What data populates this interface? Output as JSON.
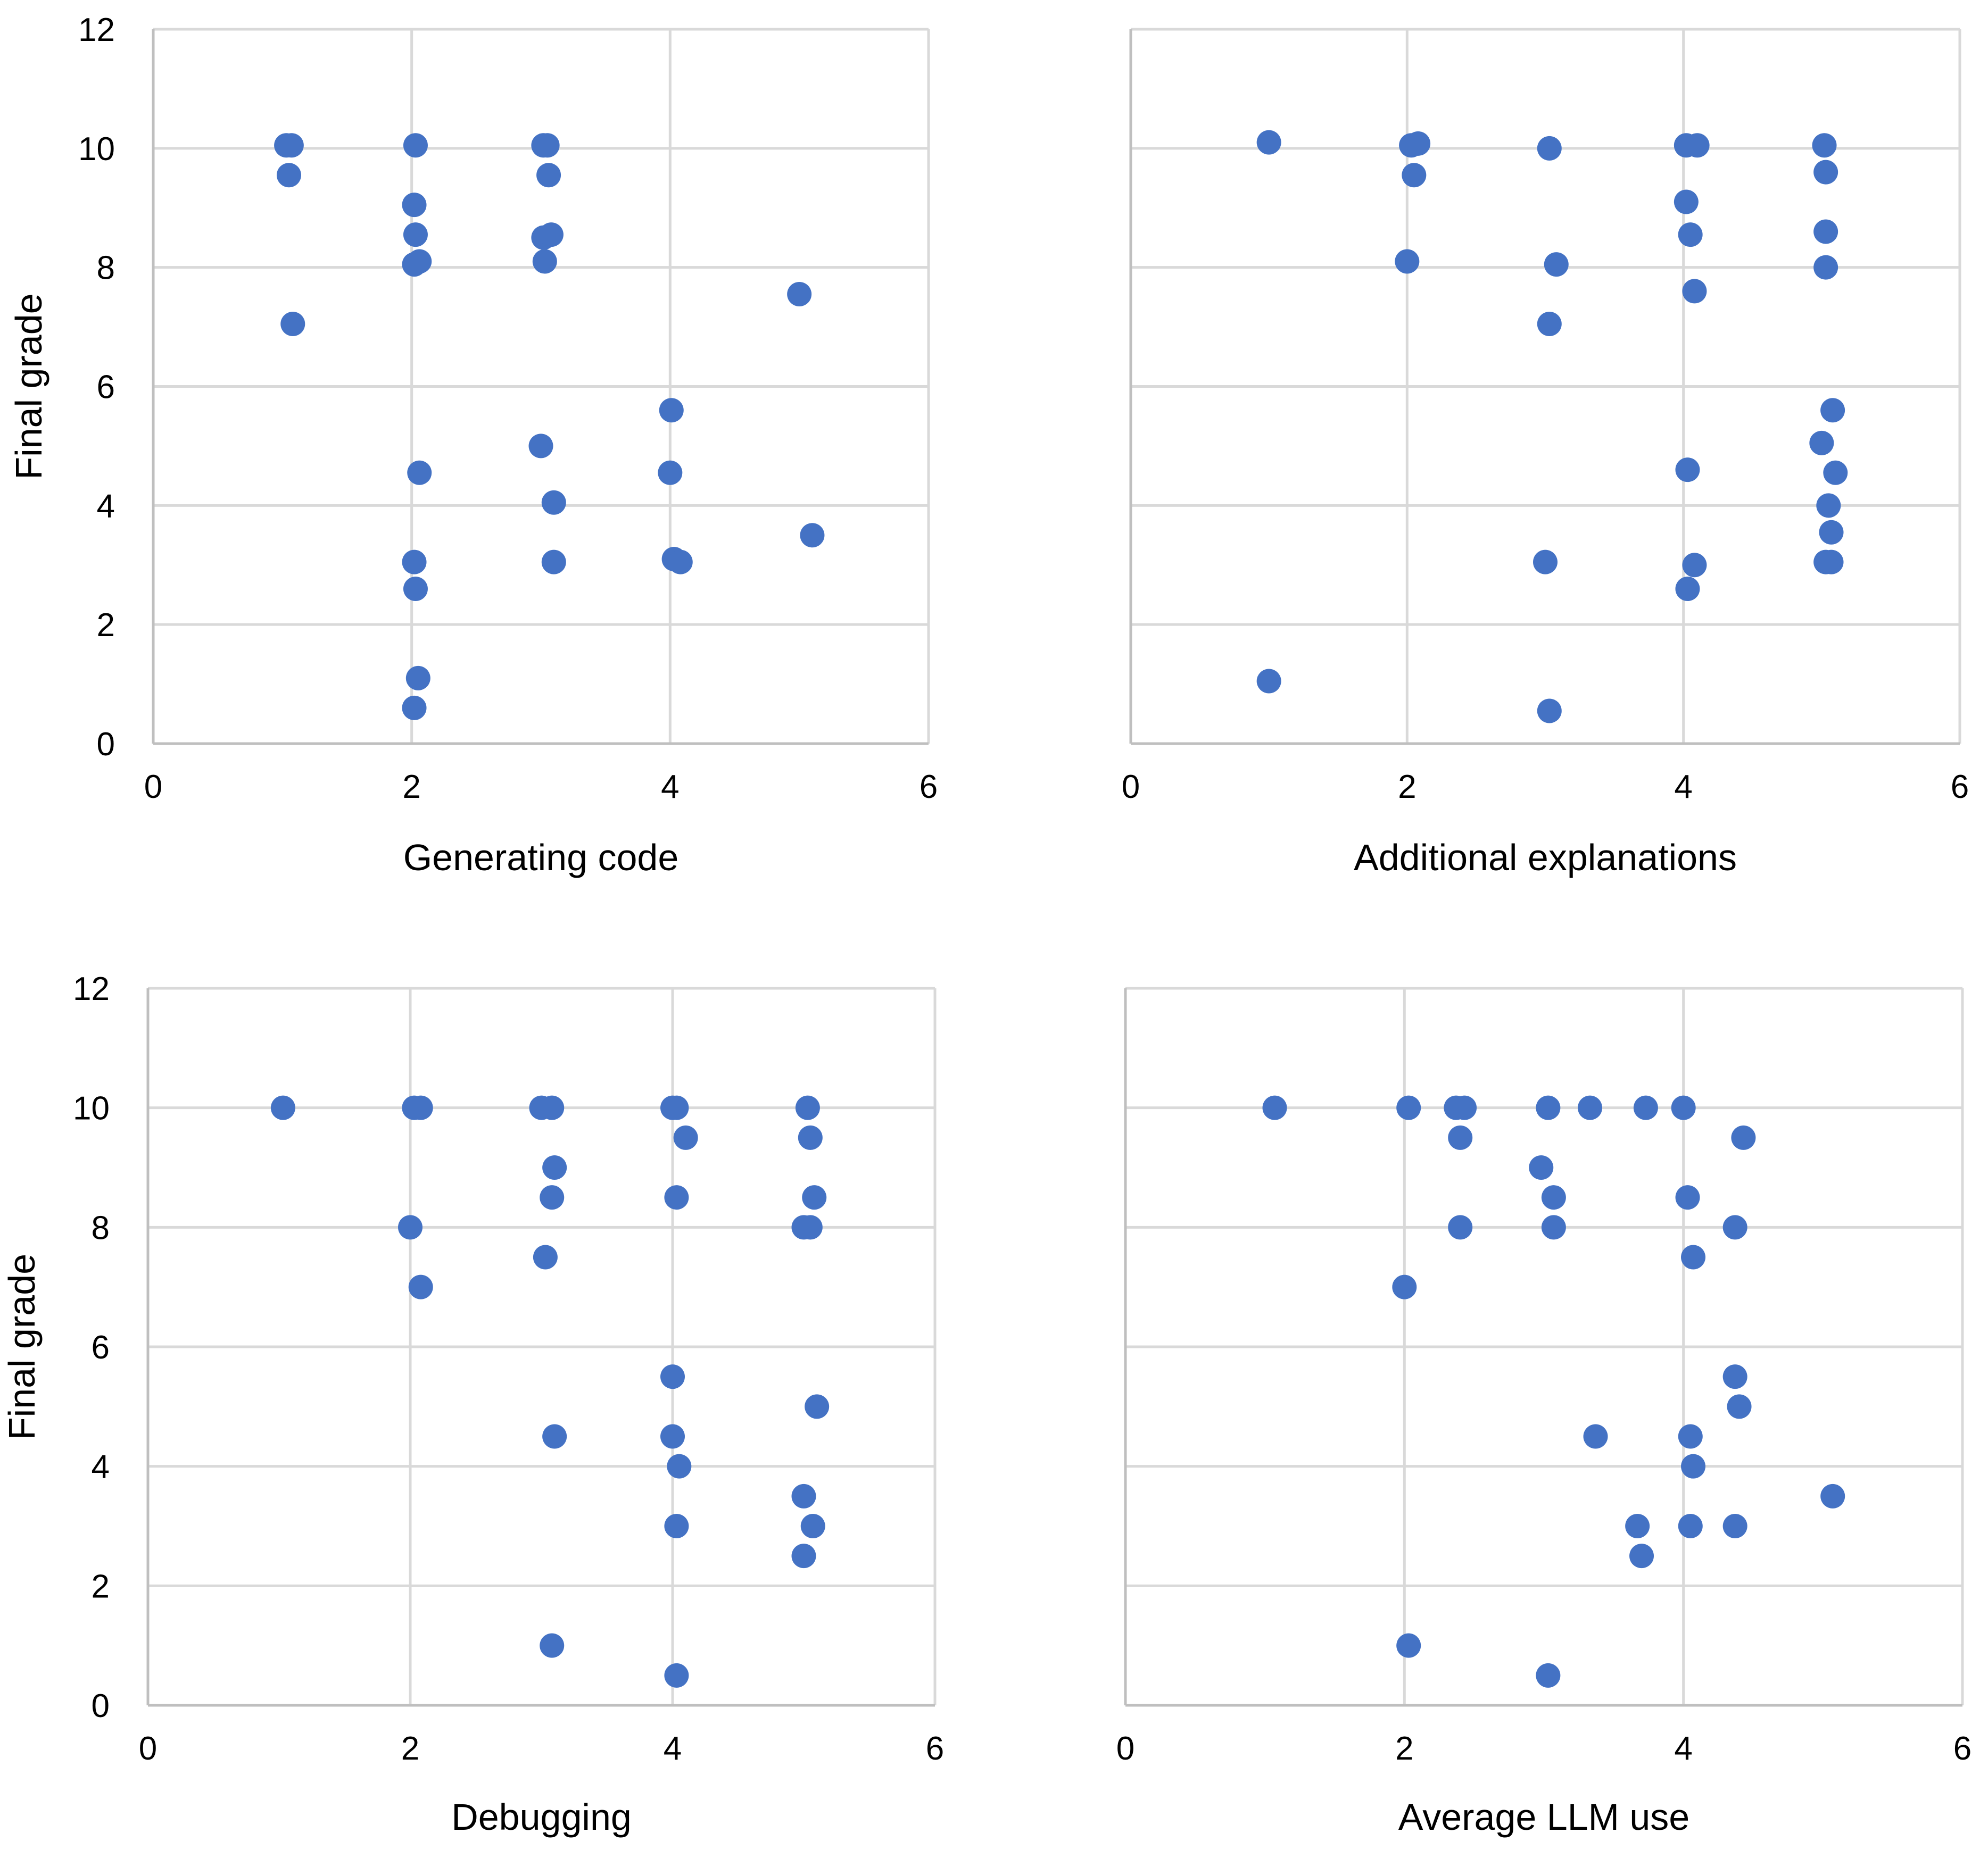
{
  "figure": {
    "panel_count": 4,
    "marker_color": "#4472c4",
    "grid_color": "#d9d9d9",
    "axis_color": "#bfbfbf"
  },
  "chart_data": [
    {
      "type": "scatter",
      "title": "",
      "xlabel": "Generating code",
      "ylabel": "Final grade",
      "xlim": [
        0,
        6
      ],
      "ylim": [
        0,
        12
      ],
      "xticks": [
        0,
        2,
        4,
        6
      ],
      "yticks": [
        0,
        2,
        4,
        6,
        8,
        10,
        12
      ],
      "grid": true,
      "series": [
        {
          "name": "Final grade",
          "x": [
            1.03,
            1.07,
            1.05,
            1.08,
            2.03,
            2.02,
            2.03,
            2.02,
            2.06,
            2.06,
            2.02,
            2.03,
            2.05,
            2.02,
            3.02,
            3.05,
            3.06,
            3.02,
            3.08,
            3.03,
            3.0,
            3.1,
            3.1,
            4.01,
            4.0,
            4.03,
            4.08,
            5.0,
            5.1
          ],
          "y": [
            10.05,
            10.05,
            9.55,
            7.05,
            10.05,
            9.05,
            8.55,
            8.05,
            8.1,
            4.55,
            3.05,
            2.6,
            1.1,
            0.6,
            10.05,
            10.05,
            9.55,
            8.5,
            8.55,
            8.1,
            5.0,
            4.05,
            3.05,
            5.6,
            4.55,
            3.1,
            3.05,
            7.55,
            3.5
          ]
        }
      ]
    },
    {
      "type": "scatter",
      "title": "",
      "xlabel": "Additional explanations",
      "ylabel": "",
      "xlim": [
        0,
        6
      ],
      "ylim": [
        0,
        12
      ],
      "xticks": [
        0,
        2,
        4,
        6
      ],
      "yticks": [
        0,
        2,
        4,
        6,
        8,
        10,
        12
      ],
      "grid": true,
      "series": [
        {
          "name": "Final grade",
          "x": [
            1.0,
            1.0,
            2.03,
            2.08,
            2.05,
            2.0,
            3.03,
            3.08,
            3.03,
            3.0,
            3.03,
            4.02,
            4.1,
            4.02,
            4.05,
            4.08,
            4.03,
            4.08,
            4.03,
            5.02,
            5.03,
            5.03,
            5.03,
            5.08,
            5.0,
            5.1,
            5.05,
            5.07,
            5.03,
            5.07
          ],
          "y": [
            10.1,
            1.05,
            10.05,
            10.08,
            9.55,
            8.1,
            10.0,
            8.05,
            7.05,
            3.05,
            0.55,
            10.05,
            10.05,
            9.1,
            8.55,
            7.6,
            4.6,
            3.0,
            2.6,
            10.05,
            9.6,
            8.6,
            8.0,
            5.6,
            5.05,
            4.55,
            4.0,
            3.55,
            3.05,
            3.05
          ]
        }
      ]
    },
    {
      "type": "scatter",
      "title": "",
      "xlabel": "Debugging",
      "ylabel": "Final grade",
      "xlim": [
        0,
        6
      ],
      "ylim": [
        0,
        12
      ],
      "xticks": [
        0,
        2,
        4,
        6
      ],
      "yticks": [
        0,
        2,
        4,
        6,
        8,
        10,
        12
      ],
      "grid": true,
      "series": [
        {
          "name": "Final grade",
          "x": [
            1.03,
            2.03,
            2.08,
            2.0,
            2.08,
            3.0,
            3.08,
            3.1,
            3.08,
            3.03,
            3.1,
            3.08,
            4.0,
            4.03,
            4.1,
            4.03,
            4.0,
            4.0,
            4.05,
            4.03,
            4.03,
            5.03,
            5.05,
            5.08,
            5.0,
            5.05,
            5.1,
            5.0,
            5.07,
            5.0
          ],
          "y": [
            10.0,
            10.0,
            10.0,
            8.0,
            7.0,
            10.0,
            10.0,
            9.0,
            8.5,
            7.5,
            4.5,
            1.0,
            10.0,
            10.0,
            9.5,
            8.5,
            5.5,
            4.5,
            4.0,
            3.0,
            0.5,
            10.0,
            9.5,
            8.5,
            8.0,
            8.0,
            5.0,
            3.5,
            3.0,
            2.5
          ]
        }
      ]
    },
    {
      "type": "scatter",
      "title": "",
      "xlabel": "Average LLM use",
      "ylabel": "",
      "xlim": [
        0,
        6
      ],
      "ylim": [
        0,
        12
      ],
      "xticks": [
        0,
        2,
        4,
        6
      ],
      "yticks": [
        0,
        2,
        4,
        6,
        8,
        10,
        12
      ],
      "grid": true,
      "series": [
        {
          "name": "Final grade",
          "x": [
            1.07,
            2.03,
            2.0,
            2.03,
            2.37,
            2.43,
            2.4,
            2.4,
            3.03,
            3.33,
            3.73,
            4.0,
            2.98,
            3.07,
            3.07,
            3.03,
            4.03,
            4.07,
            3.37,
            4.05,
            4.07,
            3.67,
            3.7,
            4.05,
            4.43,
            4.37,
            4.37,
            4.4,
            4.37,
            5.07
          ],
          "y": [
            10.0,
            10.0,
            7.0,
            1.0,
            10.0,
            10.0,
            9.5,
            8.0,
            10.0,
            10.0,
            10.0,
            10.0,
            9.0,
            8.5,
            8.0,
            0.5,
            8.5,
            7.5,
            4.5,
            4.5,
            4.0,
            3.0,
            2.5,
            3.0,
            9.5,
            8.0,
            5.5,
            5.0,
            3.0,
            3.5
          ]
        }
      ]
    }
  ]
}
